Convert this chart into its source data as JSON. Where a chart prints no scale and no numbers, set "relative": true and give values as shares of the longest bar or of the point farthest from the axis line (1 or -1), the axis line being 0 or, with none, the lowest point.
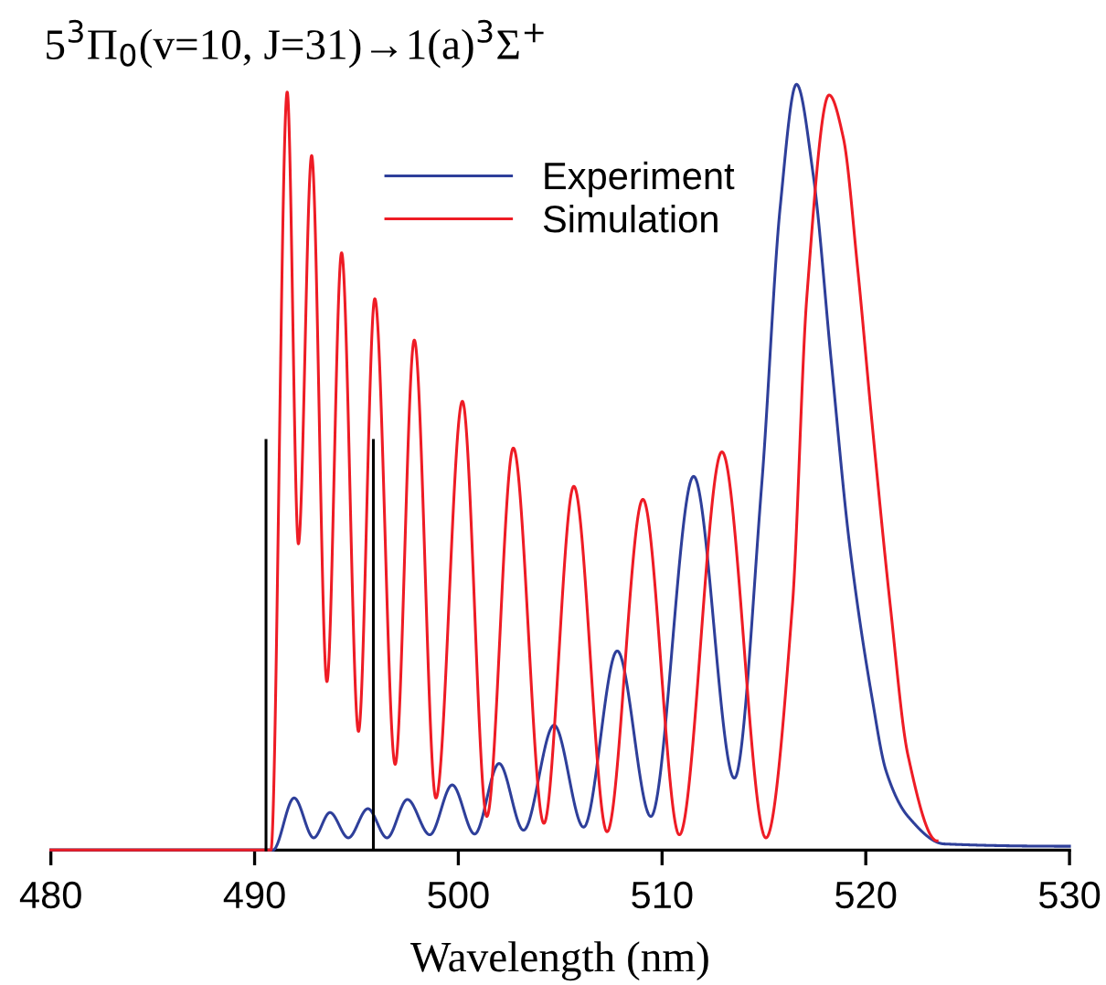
{
  "chart_data": {
    "type": "line",
    "title": "5$^{3}$Π$_{0}$(v=10, J=31)→1(a)$^{3}$Σ$^{+}$",
    "xlabel": "Wavelength (nm)",
    "relative": true,
    "xlim": [
      480,
      530
    ],
    "xticks": [
      480,
      490,
      500,
      510,
      520,
      530
    ],
    "grid": false,
    "legend": "top",
    "marker": "none",
    "line_style": "solid",
    "series": [
      {
        "name": "Experiment",
        "color": "#2e3f9a",
        "x": [
          480,
          490.9,
          491.94,
          492.9,
          493.7,
          494.6,
          495.56,
          496.5,
          497.5,
          498.6,
          499.7,
          500.8,
          502.0,
          503.2,
          504.7,
          506.15,
          507.8,
          509.45,
          511.55,
          513.55,
          514.9,
          515.8,
          516.6,
          517.43,
          518.3,
          519.2,
          520.3,
          521.0,
          522.07,
          523.85,
          530
        ],
        "values": [
          0,
          0,
          0.068,
          0.016,
          0.049,
          0.016,
          0.054,
          0.016,
          0.066,
          0.02,
          0.085,
          0.021,
          0.113,
          0.026,
          0.163,
          0.03,
          0.26,
          0.044,
          0.488,
          0.094,
          0.48,
          0.84,
          1.0,
          0.88,
          0.64,
          0.4,
          0.2,
          0.103,
          0.044,
          0.008,
          0.005
        ]
      },
      {
        "name": "Simulation",
        "color": "#ee1c25",
        "x": [
          480,
          490.8,
          491.6,
          492.15,
          492.8,
          493.55,
          494.27,
          495.1,
          495.9,
          496.9,
          497.84,
          498.9,
          500.2,
          501.4,
          502.7,
          504.2,
          505.67,
          507.3,
          509.06,
          510.85,
          512.94,
          515.1,
          516.4,
          517.1,
          518.2,
          518.9,
          519.6,
          520.3,
          521.2,
          522.07,
          523.5
        ],
        "values": [
          0,
          0,
          0.99,
          0.4,
          0.907,
          0.22,
          0.78,
          0.155,
          0.72,
          0.112,
          0.666,
          0.068,
          0.586,
          0.044,
          0.525,
          0.035,
          0.475,
          0.024,
          0.458,
          0.02,
          0.52,
          0.016,
          0.32,
          0.72,
          0.986,
          0.93,
          0.76,
          0.56,
          0.32,
          0.124,
          0.012
        ]
      },
      {
        "color": "#000000",
        "x": [
          490.56,
          490.56,
          null,
          495.83,
          495.83
        ],
        "values": [
          0,
          0.535,
          null,
          0.535,
          0
        ]
      }
    ]
  }
}
